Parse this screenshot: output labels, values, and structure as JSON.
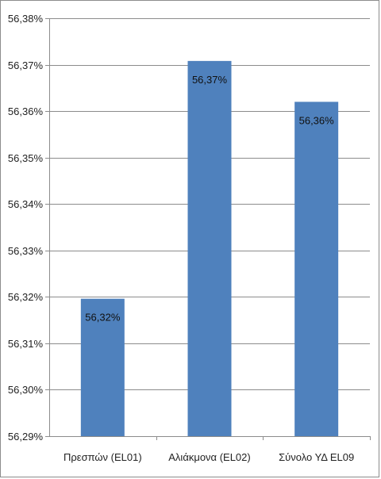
{
  "chart_data": {
    "type": "bar",
    "categories": [
      "Πρεσπών (EL01)",
      "Αλιάκμονα (EL02)",
      "Σύνολο ΥΔ EL09"
    ],
    "values": [
      56.3196,
      56.3708,
      56.362
    ],
    "data_labels": [
      "56,32%",
      "56,37%",
      "56,36%"
    ],
    "y_ticks": [
      56.29,
      56.3,
      56.31,
      56.32,
      56.33,
      56.34,
      56.35,
      56.36,
      56.37,
      56.38
    ],
    "y_tick_labels": [
      "56,29%",
      "56,30%",
      "56,31%",
      "56,32%",
      "56,33%",
      "56,34%",
      "56,35%",
      "56,36%",
      "56,37%",
      "56,38%"
    ],
    "ylim": [
      56.29,
      56.38
    ],
    "grid": true,
    "legend": "none",
    "bar_color": "#4f81bd",
    "grid_color": "#8c8c8c"
  }
}
